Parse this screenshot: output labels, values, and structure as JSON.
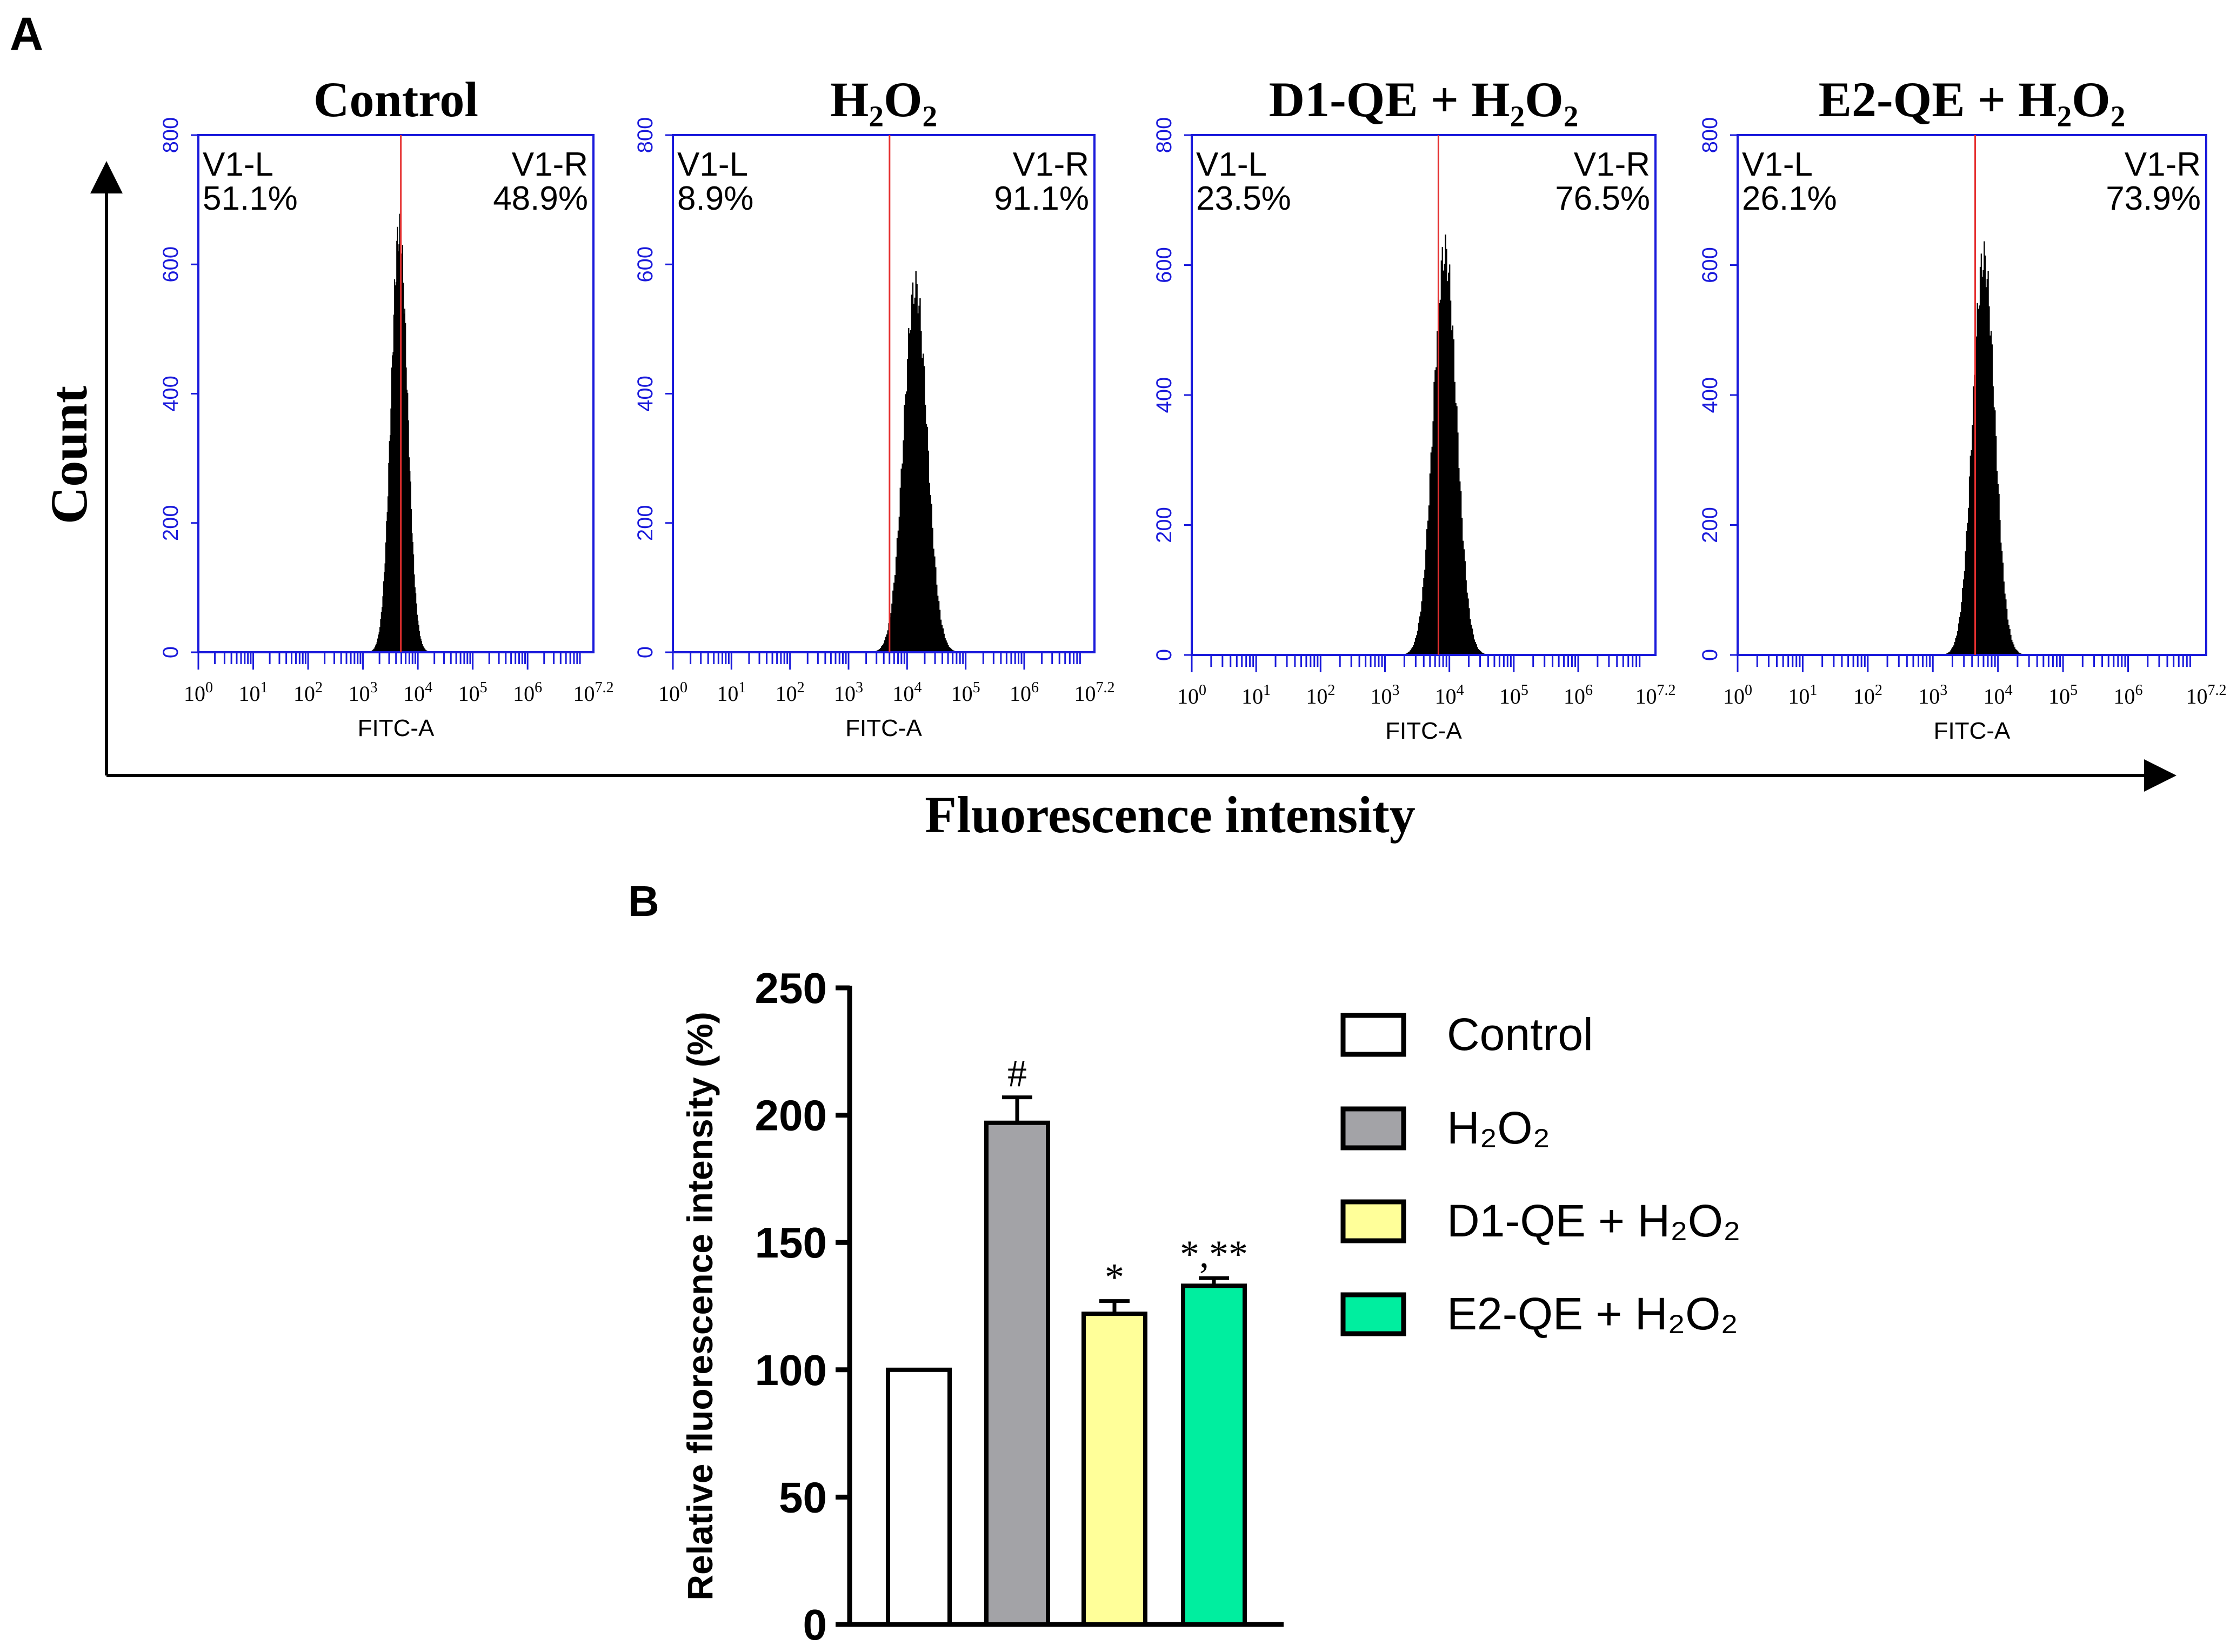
{
  "panel_a": {
    "label": "A",
    "y_axis_label": "Count",
    "x_axis_label": "Fluorescence intensity"
  },
  "panel_b": {
    "label": "B"
  },
  "chart_data": [
    {
      "type": "histogram",
      "title": "Control",
      "xlabel": "FITC-A",
      "ylabel": "Count",
      "x_scale": "log10",
      "xlim": [
        0,
        7.2
      ],
      "ylim": [
        0,
        800
      ],
      "y_ticks": [
        "0",
        "200",
        "400",
        "600",
        "800"
      ],
      "x_ticks": [
        "0",
        "1",
        "2",
        "3",
        "4",
        "5",
        "6",
        "7.2"
      ],
      "gate_log10": 3.69,
      "gate_left": {
        "name": "V1-L",
        "value": "51.1%"
      },
      "gate_right": {
        "name": "V1-R",
        "value": "48.9%"
      },
      "peak_log10": 3.66,
      "peak_count": 650,
      "spread": 0.15,
      "color": "#000000",
      "axis_color": "#1a1adb",
      "gate_color": "#e53030"
    },
    {
      "type": "histogram",
      "title": "H₂O₂",
      "xlabel": "FITC-A",
      "ylabel": "Count",
      "x_scale": "log10",
      "xlim": [
        0,
        7.2
      ],
      "ylim": [
        0,
        800
      ],
      "y_ticks": [
        "0",
        "200",
        "400",
        "600",
        "800"
      ],
      "x_ticks": [
        "0",
        "1",
        "2",
        "3",
        "4",
        "5",
        "6",
        "7.2"
      ],
      "gate_log10": 3.7,
      "gate_left": {
        "name": "V1-L",
        "value": "8.9%"
      },
      "gate_right": {
        "name": "V1-R",
        "value": "91.1%"
      },
      "peak_log10": 4.14,
      "peak_count": 565,
      "spread": 0.2,
      "color": "#000000",
      "axis_color": "#1a1adb",
      "gate_color": "#e53030"
    },
    {
      "type": "histogram",
      "title": "D1-QE + H₂O₂",
      "xlabel": "FITC-A",
      "ylabel": "Count",
      "x_scale": "log10",
      "xlim": [
        0,
        7.2
      ],
      "ylim": [
        0,
        800
      ],
      "y_ticks": [
        "0",
        "200",
        "400",
        "600",
        "800"
      ],
      "x_ticks": [
        "0",
        "1",
        "2",
        "3",
        "4",
        "5",
        "6",
        "7.2"
      ],
      "gate_log10": 3.83,
      "gate_left": {
        "name": "V1-L",
        "value": "23.5%"
      },
      "gate_right": {
        "name": "V1-R",
        "value": "76.5%"
      },
      "peak_log10": 3.93,
      "peak_count": 620,
      "spread": 0.18,
      "color": "#000000",
      "axis_color": "#1a1adb",
      "gate_color": "#e53030"
    },
    {
      "type": "histogram",
      "title": "E2-QE + H₂O₂",
      "xlabel": "FITC-A",
      "ylabel": "Count",
      "x_scale": "log10",
      "xlim": [
        0,
        7.2
      ],
      "ylim": [
        0,
        800
      ],
      "y_ticks": [
        "0",
        "200",
        "400",
        "600",
        "800"
      ],
      "x_ticks": [
        "0",
        "1",
        "2",
        "3",
        "4",
        "5",
        "6",
        "7.2"
      ],
      "gate_log10": 3.65,
      "gate_left": {
        "name": "V1-L",
        "value": "26.1%"
      },
      "gate_right": {
        "name": "V1-R",
        "value": "73.9%"
      },
      "peak_log10": 3.78,
      "peak_count": 610,
      "spread": 0.17,
      "color": "#000000",
      "axis_color": "#1a1adb",
      "gate_color": "#e53030"
    },
    {
      "type": "bar",
      "title": "",
      "xlabel": "",
      "ylabel": "Relative fluorescence intensity (%)",
      "ylim": [
        0,
        250
      ],
      "y_ticks": [
        "0",
        "50",
        "100",
        "150",
        "200",
        "250"
      ],
      "categories": [
        "Control",
        "H₂O₂",
        "D1-QE + H₂O₂",
        "E2-QE + H₂O₂"
      ],
      "values": [
        100,
        197,
        122,
        133
      ],
      "errors": [
        0,
        10,
        5,
        3
      ],
      "annotations": [
        "",
        "#",
        "*",
        "*,**"
      ],
      "colors": [
        "#ffffff",
        "#a3a3a7",
        "#ffff99",
        "#00ee9f"
      ],
      "legend_position": "right"
    }
  ]
}
